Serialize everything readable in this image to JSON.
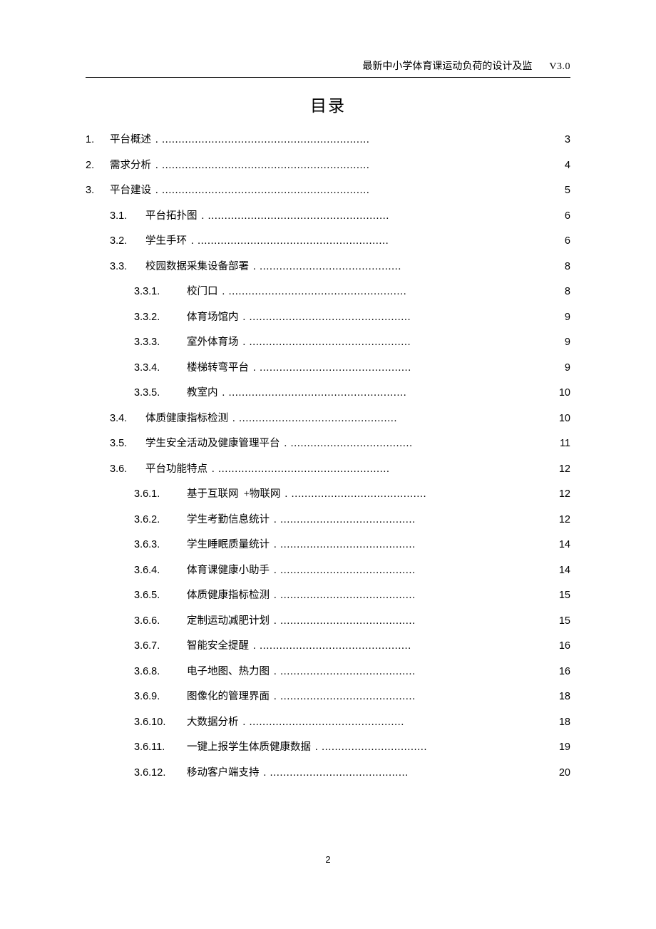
{
  "header": {
    "title": "最新中小学体育课运动负荷的设计及监",
    "version": "V3.0"
  },
  "toc_title": "目录",
  "page_number": "2",
  "toc": [
    {
      "level": 0,
      "num": "1.",
      "label": "平台概述",
      "dots": ". ...............................................................",
      "page": "3"
    },
    {
      "level": 0,
      "num": "2.",
      "label": "需求分析",
      "dots": ". ...............................................................",
      "page": "4"
    },
    {
      "level": 0,
      "num": "3.",
      "label": "平台建设",
      "dots": ". ...............................................................",
      "page": "5"
    },
    {
      "level": 1,
      "num": "3.1.",
      "label": "平台拓扑图",
      "dots": ". .......................................................",
      "page": "6"
    },
    {
      "level": 1,
      "num": "3.2.",
      "label": "学生手环",
      "dots": ". ..........................................................",
      "page": "6"
    },
    {
      "level": 1,
      "num": "3.3.",
      "label": "校园数据采集设备部署",
      "dots": "  . ...........................................",
      "page": "8"
    },
    {
      "level": 2,
      "num": "3.3.1.",
      "label": "校门口",
      "dots": ". ......................................................",
      "page": "8"
    },
    {
      "level": 2,
      "num": "3.3.2.",
      "label": "体育场馆内",
      "dots": ". .................................................",
      "page": "9"
    },
    {
      "level": 2,
      "num": "3.3.3.",
      "label": "室外体育场",
      "dots": ". .................................................",
      "page": "9"
    },
    {
      "level": 2,
      "num": "3.3.4.",
      "label": "楼梯转弯平台",
      "dots": ". ..............................................",
      "page": "9"
    },
    {
      "level": 2,
      "num": "3.3.5.",
      "label": "教室内",
      "dots": ". ......................................................",
      "page": "10"
    },
    {
      "level": 1,
      "num": "3.4.",
      "label": "体质健康指标检测",
      "dots": "  . ................................................",
      "page": "10"
    },
    {
      "level": 1,
      "num": "3.5.",
      "label": "学生安全活动及健康管理平台",
      "dots": "   . .....................................",
      "page": "11"
    },
    {
      "level": 1,
      "num": "3.6.",
      "label": "平台功能特点",
      "dots": ". ....................................................",
      "page": "12"
    },
    {
      "level": 2,
      "num": "3.6.1.",
      "label": "基于互联网  +物联网",
      "dots": ". .........................................",
      "page": "12"
    },
    {
      "level": 2,
      "num": "3.6.2.",
      "label": "学生考勤信息统计",
      "dots": "  . .........................................",
      "page": "12"
    },
    {
      "level": 2,
      "num": "3.6.3.",
      "label": "学生睡眠质量统计",
      "dots": "  . .........................................",
      "page": "14"
    },
    {
      "level": 2,
      "num": "3.6.4.",
      "label": "体育课健康小助手",
      "dots": "  . .........................................",
      "page": "14"
    },
    {
      "level": 2,
      "num": "3.6.5.",
      "label": "体质健康指标检测",
      "dots": "  . .........................................",
      "page": "15"
    },
    {
      "level": 2,
      "num": "3.6.6.",
      "label": "定制运动减肥计划",
      "dots": "  . .........................................",
      "page": "15"
    },
    {
      "level": 2,
      "num": "3.6.7.",
      "label": "智能安全提醒",
      "dots": "  . ..............................................",
      "page": "16"
    },
    {
      "level": 2,
      "num": "3.6.8.",
      "label": "电子地图、热力图",
      "dots": "  . .........................................",
      "page": "16"
    },
    {
      "level": 2,
      "num": "3.6.9.",
      "label": "图像化的管理界面",
      "dots": "  . .........................................",
      "page": "18"
    },
    {
      "level": 2,
      "num": "3.6.10.",
      "label": "大数据分析",
      "dots": ". ...............................................",
      "page": "18"
    },
    {
      "level": 2,
      "num": "3.6.11.",
      "label": "一键上报学生体质健康数据",
      "dots": "   . ................................",
      "page": "19"
    },
    {
      "level": 2,
      "num": "3.6.12.",
      "label": "移动客户端支持",
      "dots": "  . ..........................................",
      "page": "20"
    }
  ]
}
